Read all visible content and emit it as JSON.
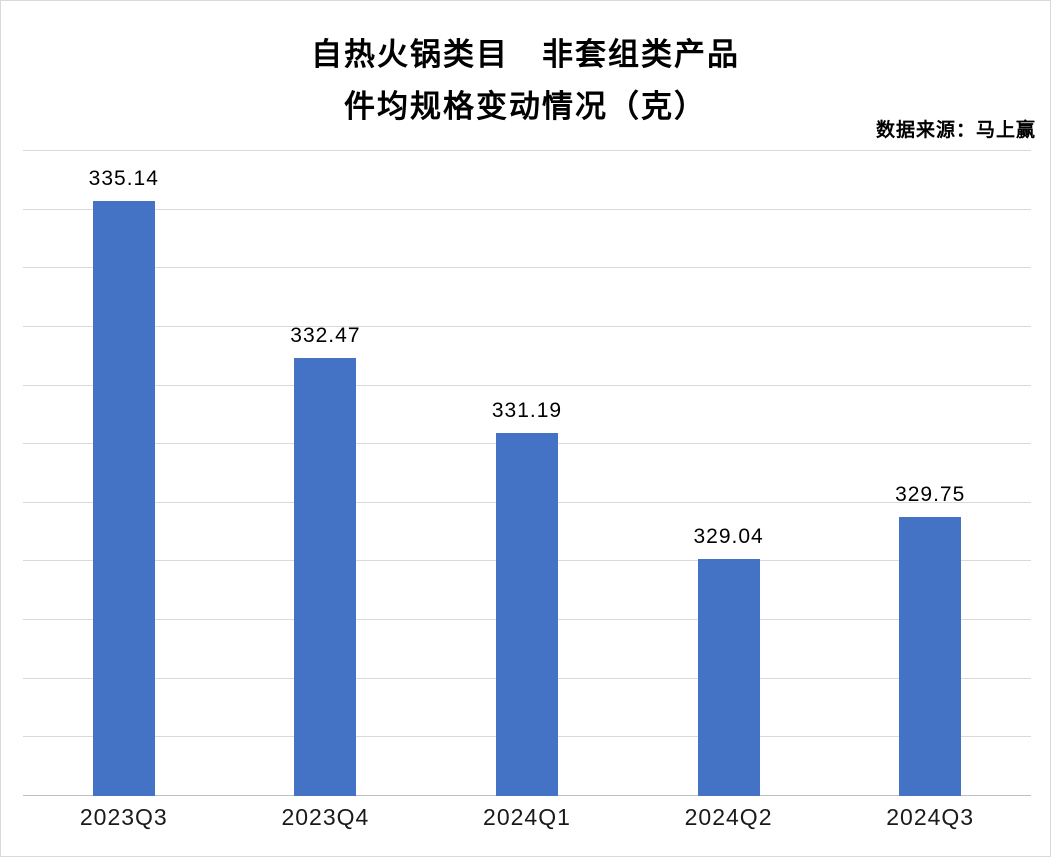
{
  "title": {
    "line1": "自热火锅类目　非套组类产品",
    "line2": "件均规格变动情况（克）"
  },
  "source": "数据来源：马上赢",
  "chart_data": {
    "type": "bar",
    "title": "自热火锅类目 非套组类产品 件均规格变动情况（克）",
    "categories": [
      "2023Q3",
      "2023Q4",
      "2024Q1",
      "2024Q2",
      "2024Q3"
    ],
    "values": [
      335.14,
      332.47,
      331.19,
      329.04,
      329.75
    ],
    "xlabel": "",
    "ylabel": "",
    "ylim": [
      325,
      336
    ],
    "grid": true,
    "grid_step": 1,
    "legend": false,
    "value_decimals": 2,
    "bar_color": "#4472C4",
    "gridline_color": "#D9D9D9",
    "axis_color": "#BFBFBF"
  }
}
